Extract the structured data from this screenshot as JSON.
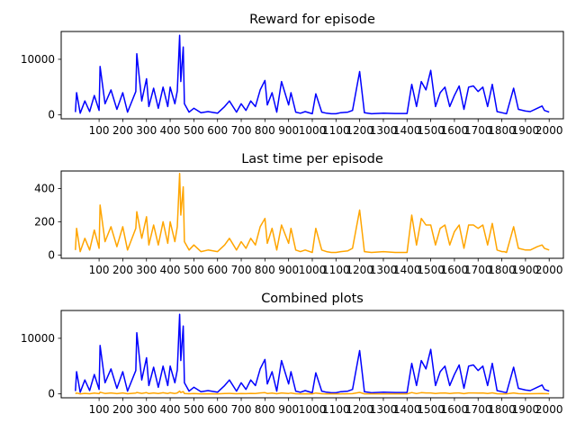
{
  "chart_data": [
    {
      "type": "line",
      "title": "Reward for episode",
      "xlabel": "",
      "ylabel": "",
      "xlim": [
        -60,
        2060
      ],
      "ylim": [
        -700,
        15000
      ],
      "x_ticks": [
        100,
        200,
        300,
        400,
        500,
        600,
        700,
        800,
        900,
        1000,
        1100,
        1200,
        1300,
        1400,
        1500,
        1600,
        1700,
        1800,
        1900,
        2000
      ],
      "y_ticks": [
        0,
        10000
      ],
      "grid": false,
      "series": [
        {
          "color": "#0000ff",
          "x": [
            0,
            5,
            20,
            40,
            60,
            80,
            100,
            104,
            125,
            150,
            175,
            200,
            220,
            255,
            259,
            280,
            300,
            310,
            330,
            350,
            370,
            390,
            400,
            420,
            430,
            440,
            445,
            455,
            460,
            480,
            500,
            530,
            560,
            600,
            630,
            650,
            680,
            700,
            720,
            740,
            760,
            780,
            800,
            810,
            830,
            850,
            870,
            900,
            910,
            930,
            950,
            970,
            1000,
            1015,
            1040,
            1060,
            1080,
            1100,
            1120,
            1150,
            1170,
            1200,
            1220,
            1250,
            1300,
            1350,
            1400,
            1420,
            1440,
            1460,
            1480,
            1500,
            1520,
            1540,
            1560,
            1580,
            1600,
            1620,
            1640,
            1660,
            1680,
            1700,
            1720,
            1740,
            1760,
            1780,
            1800,
            1810,
            1820,
            1850,
            1870,
            1900,
            1920,
            1950,
            1970,
            1980,
            2000
          ],
          "y": [
            500,
            4000,
            300,
            2500,
            600,
            3500,
            800,
            8700,
            2000,
            4500,
            1000,
            4000,
            500,
            4200,
            11000,
            2500,
            6500,
            1500,
            4800,
            1200,
            5000,
            1500,
            5000,
            2000,
            4300,
            14300,
            6000,
            12200,
            2000,
            500,
            1200,
            400,
            600,
            300,
            1500,
            2500,
            500,
            2000,
            800,
            2500,
            1500,
            4500,
            6200,
            1800,
            4000,
            500,
            6000,
            1800,
            4000,
            500,
            300,
            600,
            200,
            3800,
            500,
            300,
            200,
            200,
            400,
            500,
            800,
            7800,
            400,
            200,
            300,
            250,
            250,
            5500,
            1500,
            6000,
            4500,
            8000,
            1500,
            4000,
            5000,
            1500,
            3500,
            5200,
            1000,
            5000,
            5200,
            4200,
            5000,
            1500,
            5500,
            600,
            400,
            300,
            200,
            4800,
            1000,
            700,
            600,
            1200,
            1600,
            800,
            500
          ]
        }
      ]
    },
    {
      "type": "line",
      "title": "Last time per episode",
      "xlabel": "",
      "ylabel": "",
      "xlim": [
        -60,
        2060
      ],
      "ylim": [
        -20,
        505
      ],
      "x_ticks": [
        100,
        200,
        300,
        400,
        500,
        600,
        700,
        800,
        900,
        1000,
        1100,
        1200,
        1300,
        1400,
        1500,
        1600,
        1700,
        1800,
        1900,
        2000
      ],
      "y_ticks": [
        0,
        200,
        400
      ],
      "grid": false,
      "series": [
        {
          "color": "#ffa500",
          "x": [
            0,
            5,
            20,
            40,
            60,
            80,
            100,
            104,
            125,
            150,
            175,
            200,
            220,
            255,
            259,
            280,
            300,
            310,
            330,
            350,
            370,
            390,
            400,
            420,
            430,
            440,
            445,
            455,
            460,
            480,
            500,
            530,
            560,
            600,
            630,
            650,
            680,
            700,
            720,
            740,
            760,
            780,
            800,
            810,
            830,
            850,
            870,
            900,
            910,
            930,
            950,
            970,
            1000,
            1015,
            1040,
            1060,
            1080,
            1100,
            1120,
            1150,
            1170,
            1200,
            1220,
            1250,
            1300,
            1350,
            1400,
            1420,
            1440,
            1460,
            1480,
            1500,
            1520,
            1540,
            1560,
            1580,
            1600,
            1620,
            1640,
            1660,
            1680,
            1700,
            1720,
            1740,
            1760,
            1780,
            1800,
            1810,
            1820,
            1850,
            1870,
            1900,
            1920,
            1950,
            1970,
            1980,
            2000
          ],
          "y": [
            30,
            160,
            20,
            100,
            30,
            150,
            40,
            300,
            80,
            170,
            50,
            170,
            30,
            160,
            260,
            100,
            230,
            60,
            180,
            60,
            200,
            70,
            200,
            80,
            170,
            490,
            240,
            410,
            80,
            30,
            60,
            20,
            30,
            20,
            60,
            100,
            30,
            80,
            40,
            100,
            60,
            170,
            220,
            70,
            160,
            30,
            180,
            70,
            160,
            30,
            20,
            30,
            15,
            160,
            30,
            20,
            15,
            15,
            20,
            25,
            40,
            270,
            20,
            15,
            20,
            15,
            15,
            240,
            60,
            220,
            180,
            180,
            60,
            160,
            180,
            60,
            140,
            180,
            40,
            180,
            180,
            160,
            180,
            60,
            190,
            30,
            20,
            20,
            15,
            170,
            40,
            30,
            30,
            50,
            60,
            40,
            30
          ]
        }
      ]
    },
    {
      "type": "line",
      "title": "Combined plots",
      "xlabel": "",
      "ylabel": "",
      "xlim": [
        -60,
        2060
      ],
      "ylim": [
        -700,
        15000
      ],
      "x_ticks": [
        100,
        200,
        300,
        400,
        500,
        600,
        700,
        800,
        900,
        1000,
        1100,
        1200,
        1300,
        1400,
        1500,
        1600,
        1700,
        1800,
        1900,
        2000
      ],
      "y_ticks": [
        0,
        10000
      ],
      "grid": false,
      "series": [
        {
          "color": "#0000ff",
          "x": [
            0,
            5,
            20,
            40,
            60,
            80,
            100,
            104,
            125,
            150,
            175,
            200,
            220,
            255,
            259,
            280,
            300,
            310,
            330,
            350,
            370,
            390,
            400,
            420,
            430,
            440,
            445,
            455,
            460,
            480,
            500,
            530,
            560,
            600,
            630,
            650,
            680,
            700,
            720,
            740,
            760,
            780,
            800,
            810,
            830,
            850,
            870,
            900,
            910,
            930,
            950,
            970,
            1000,
            1015,
            1040,
            1060,
            1080,
            1100,
            1120,
            1150,
            1170,
            1200,
            1220,
            1250,
            1300,
            1350,
            1400,
            1420,
            1440,
            1460,
            1480,
            1500,
            1520,
            1540,
            1560,
            1580,
            1600,
            1620,
            1640,
            1660,
            1680,
            1700,
            1720,
            1740,
            1760,
            1780,
            1800,
            1810,
            1820,
            1850,
            1870,
            1900,
            1920,
            1950,
            1970,
            1980,
            2000
          ],
          "y": [
            500,
            4000,
            300,
            2500,
            600,
            3500,
            800,
            8700,
            2000,
            4500,
            1000,
            4000,
            500,
            4200,
            11000,
            2500,
            6500,
            1500,
            4800,
            1200,
            5000,
            1500,
            5000,
            2000,
            4300,
            14300,
            6000,
            12200,
            2000,
            500,
            1200,
            400,
            600,
            300,
            1500,
            2500,
            500,
            2000,
            800,
            2500,
            1500,
            4500,
            6200,
            1800,
            4000,
            500,
            6000,
            1800,
            4000,
            500,
            300,
            600,
            200,
            3800,
            500,
            300,
            200,
            200,
            400,
            500,
            800,
            7800,
            400,
            200,
            300,
            250,
            250,
            5500,
            1500,
            6000,
            4500,
            8000,
            1500,
            4000,
            5000,
            1500,
            3500,
            5200,
            1000,
            5000,
            5200,
            4200,
            5000,
            1500,
            5500,
            600,
            400,
            300,
            200,
            4800,
            1000,
            700,
            600,
            1200,
            1600,
            800,
            500
          ]
        },
        {
          "color": "#ffa500",
          "x": [
            0,
            5,
            20,
            40,
            60,
            80,
            100,
            104,
            125,
            150,
            175,
            200,
            220,
            255,
            259,
            280,
            300,
            310,
            330,
            350,
            370,
            390,
            400,
            420,
            430,
            440,
            445,
            455,
            460,
            480,
            500,
            530,
            560,
            600,
            630,
            650,
            680,
            700,
            720,
            740,
            760,
            780,
            800,
            810,
            830,
            850,
            870,
            900,
            910,
            930,
            950,
            970,
            1000,
            1015,
            1040,
            1060,
            1080,
            1100,
            1120,
            1150,
            1170,
            1200,
            1220,
            1250,
            1300,
            1350,
            1400,
            1420,
            1440,
            1460,
            1480,
            1500,
            1520,
            1540,
            1560,
            1580,
            1600,
            1620,
            1640,
            1660,
            1680,
            1700,
            1720,
            1740,
            1760,
            1780,
            1800,
            1810,
            1820,
            1850,
            1870,
            1900,
            1920,
            1950,
            1970,
            1980,
            2000
          ],
          "y": [
            30,
            160,
            20,
            100,
            30,
            150,
            40,
            300,
            80,
            170,
            50,
            170,
            30,
            160,
            260,
            100,
            230,
            60,
            180,
            60,
            200,
            70,
            200,
            80,
            170,
            490,
            240,
            410,
            80,
            30,
            60,
            20,
            30,
            20,
            60,
            100,
            30,
            80,
            40,
            100,
            60,
            170,
            220,
            70,
            160,
            30,
            180,
            70,
            160,
            30,
            20,
            30,
            15,
            160,
            30,
            20,
            15,
            15,
            20,
            25,
            40,
            270,
            20,
            15,
            20,
            15,
            15,
            240,
            60,
            220,
            180,
            180,
            60,
            160,
            180,
            60,
            140,
            180,
            40,
            180,
            180,
            160,
            180,
            60,
            190,
            30,
            20,
            20,
            15,
            170,
            40,
            30,
            30,
            50,
            60,
            40,
            30
          ]
        }
      ]
    }
  ]
}
